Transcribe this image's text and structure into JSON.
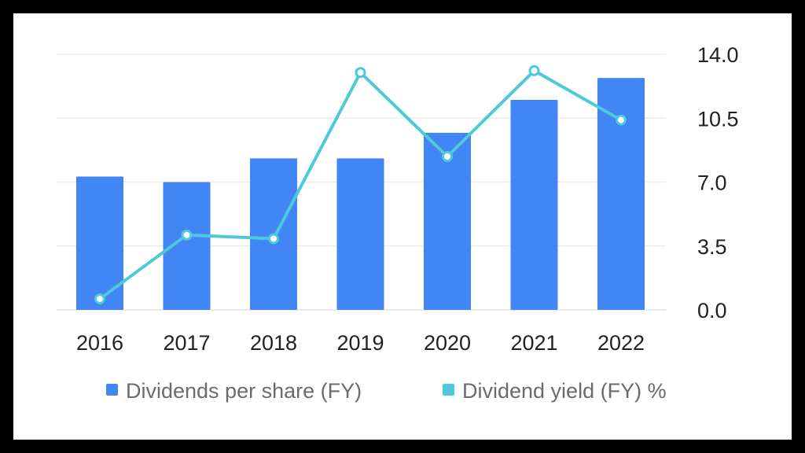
{
  "chart_data": {
    "type": "bar",
    "categories": [
      "2016",
      "2017",
      "2018",
      "2019",
      "2020",
      "2021",
      "2022"
    ],
    "series": [
      {
        "name": "Dividends per share (FY)",
        "type": "bar",
        "values": [
          7.3,
          7.0,
          8.3,
          8.3,
          9.7,
          11.5,
          12.7
        ],
        "color": "#4285f4"
      },
      {
        "name": "Dividend yield (FY) %",
        "type": "line",
        "values": [
          0.6,
          4.1,
          3.9,
          13.0,
          8.4,
          13.1,
          10.4
        ],
        "color": "#4ec9d9"
      }
    ],
    "y_axis": {
      "position": "right",
      "ticks": [
        "0.0",
        "3.5",
        "7.0",
        "10.5",
        "14.0"
      ],
      "ylim": [
        0,
        14
      ]
    },
    "grid": true,
    "legend": {
      "position": "bottom"
    }
  }
}
